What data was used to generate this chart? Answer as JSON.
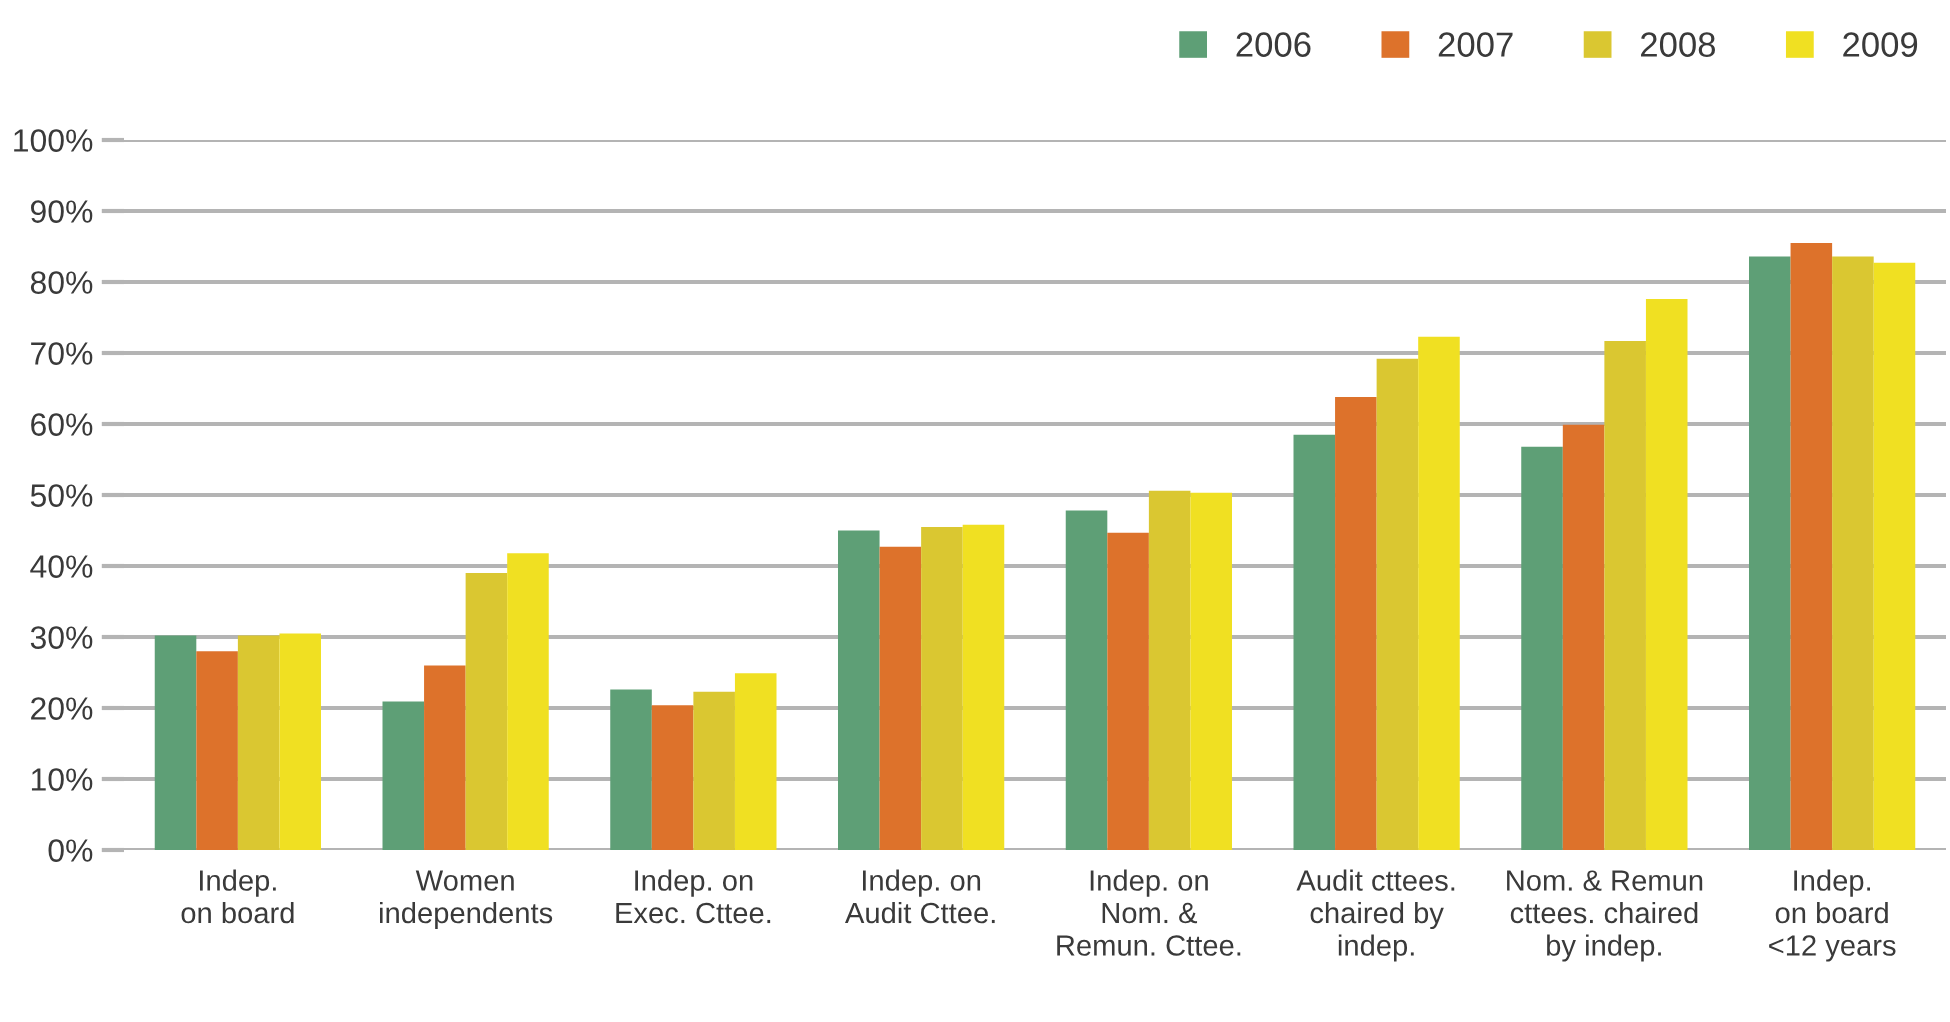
{
  "chart_data": {
    "type": "bar",
    "categories": [
      "Indep.\non board",
      "Women\nindependents",
      "Indep. on\nExec. Cttee.",
      "Indep. on\nAudit Cttee.",
      "Indep. on\nNom. &\nRemun. Cttee.",
      "Audit cttees.\nchaired by\nindep.",
      "Nom. & Remun\ncttees. chaired\nby indep.",
      "Indep.\non board\n<12 years"
    ],
    "series": [
      {
        "name": "2006",
        "color": "#5e9f76",
        "values": [
          30.2,
          20.9,
          22.6,
          45.0,
          47.8,
          58.5,
          56.8,
          83.6
        ]
      },
      {
        "name": "2007",
        "color": "#dd722b",
        "values": [
          28.0,
          26.0,
          20.4,
          42.7,
          44.7,
          63.8,
          59.9,
          85.5
        ]
      },
      {
        "name": "2008",
        "color": "#dac731",
        "values": [
          30.2,
          39.0,
          22.3,
          45.5,
          50.6,
          69.2,
          71.7,
          83.6
        ]
      },
      {
        "name": "2009",
        "color": "#f0e022",
        "values": [
          30.5,
          41.8,
          24.9,
          45.8,
          50.3,
          72.3,
          77.6,
          82.7
        ]
      }
    ],
    "ylim": [
      0,
      100
    ],
    "yticks": [
      {
        "value": 0,
        "label": "0%"
      },
      {
        "value": 10,
        "label": "10%"
      },
      {
        "value": 20,
        "label": "20%"
      },
      {
        "value": 30,
        "label": "30%"
      },
      {
        "value": 40,
        "label": "40%"
      },
      {
        "value": 50,
        "label": "50%"
      },
      {
        "value": 60,
        "label": "60%"
      },
      {
        "value": 70,
        "label": "70%"
      },
      {
        "value": 80,
        "label": "80%"
      },
      {
        "value": 90,
        "label": "90%"
      },
      {
        "value": 100,
        "label": "100%"
      }
    ],
    "grid": "y",
    "legend": "top right"
  }
}
